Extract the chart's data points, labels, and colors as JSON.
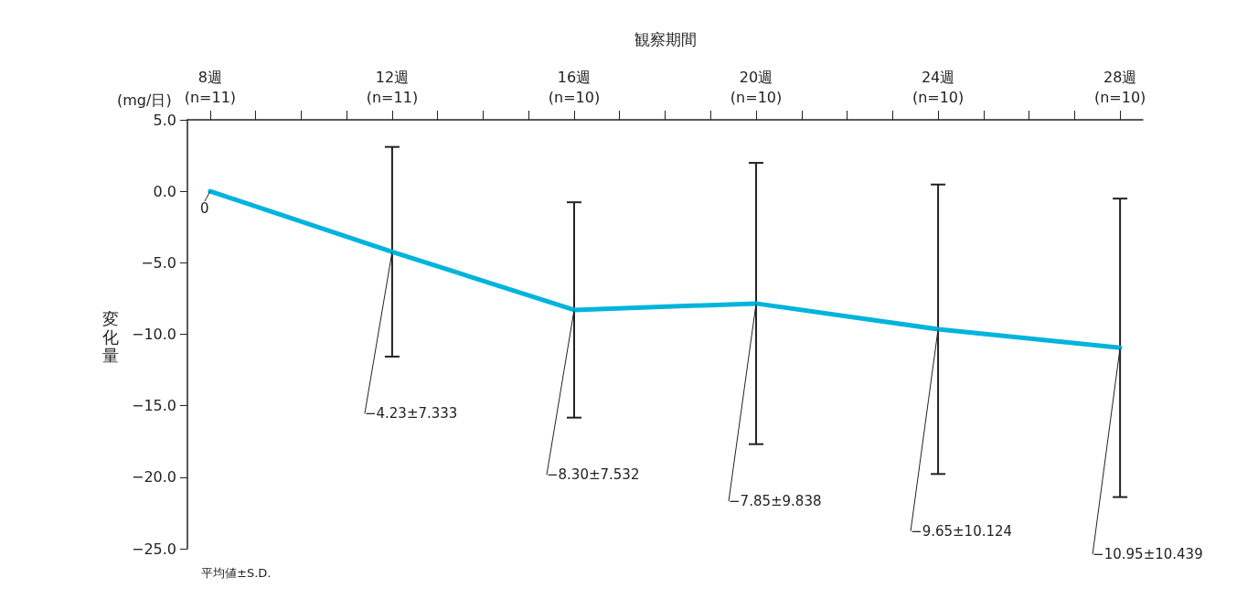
{
  "chart_data": {
    "type": "line",
    "xlabel": "観察期間",
    "ylabel": "変化量",
    "annotations": [
      "(mg/日)",
      "平均値±S.D."
    ],
    "categories": [
      "8週\n(n=11)",
      null,
      null,
      null,
      "12週\n(n=11)",
      null,
      null,
      null,
      "16週\n(n=10)",
      null,
      null,
      null,
      "20週\n(n=10)",
      null,
      null,
      null,
      "24週\n(n=10)",
      null,
      null,
      null,
      "28週\n(n=10)"
    ],
    "values": [
      0,
      null,
      null,
      null,
      -4.23,
      null,
      null,
      null,
      -8.3,
      null,
      null,
      null,
      -7.85,
      null,
      null,
      null,
      -9.65,
      null,
      null,
      null,
      -10.95
    ],
    "errors": [
      null,
      null,
      null,
      null,
      7.333,
      null,
      null,
      null,
      7.532,
      null,
      null,
      null,
      9.838,
      null,
      null,
      null,
      10.124,
      null,
      null,
      null,
      10.439
    ],
    "value_labels": [
      "0",
      null,
      null,
      null,
      "−4.23±7.333",
      null,
      null,
      null,
      "−8.30±7.532",
      null,
      null,
      null,
      "−7.85±9.838",
      null,
      null,
      null,
      "−9.65±10.124",
      null,
      null,
      null,
      "−10.95±10.439"
    ],
    "color": "#00b4dc",
    "marker": "none",
    "line_style": "solid",
    "grid": false,
    "ylim": [
      -25,
      5
    ],
    "yticks": [
      {
        "value": 5,
        "label": "5.0"
      },
      {
        "value": 0,
        "label": "0.0"
      },
      {
        "value": -5,
        "label": "−5.0"
      },
      {
        "value": -10,
        "label": "−10.0"
      },
      {
        "value": -15,
        "label": "−15.0"
      },
      {
        "value": -20,
        "label": "−20.0"
      },
      {
        "value": -25,
        "label": "−25.0"
      }
    ]
  }
}
